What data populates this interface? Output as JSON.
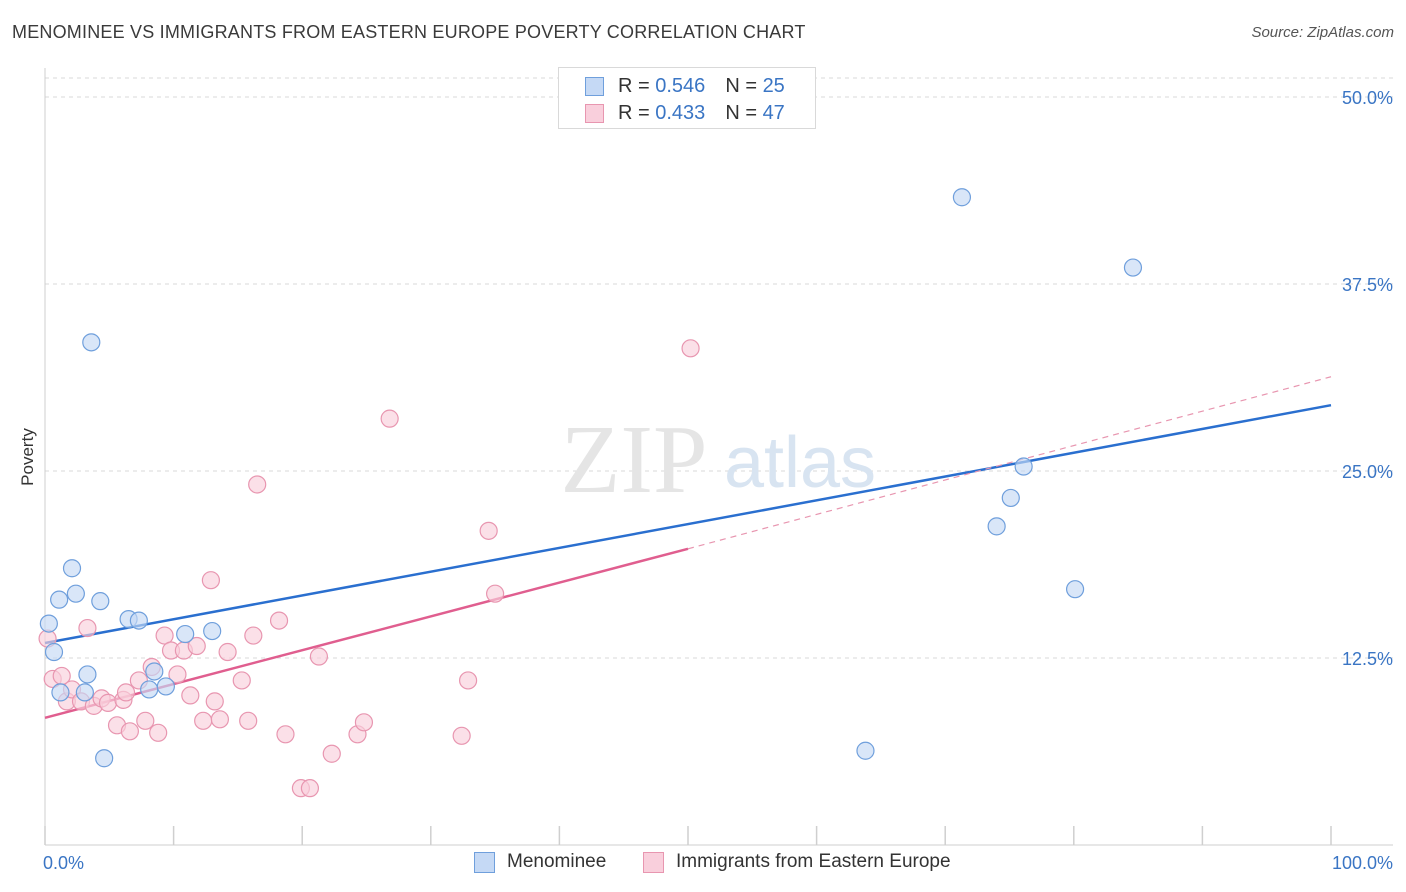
{
  "title": "MENOMINEE VS IMMIGRANTS FROM EASTERN EUROPE POVERTY CORRELATION CHART",
  "source": "Source: ZipAtlas.com",
  "watermark": {
    "zip": "ZIP",
    "atlas": "atlas"
  },
  "legend_top": [
    {
      "r_label": "R =",
      "r_value": "0.546",
      "n_label": "N =",
      "n_value": "25"
    },
    {
      "r_label": "R =",
      "r_value": "0.433",
      "n_label": "N =",
      "n_value": "47"
    }
  ],
  "colors": {
    "menominee_fill": "#c5d9f5",
    "menominee_stroke": "#6f9fdc",
    "menominee_line": "#2a6fcf",
    "immigrants_fill": "#f9cfdc",
    "immigrants_stroke": "#e896b0",
    "immigrants_line": "#e05e8f",
    "tick_label": "#3a75c4",
    "grid": "#d8d8d8"
  },
  "chart_data": {
    "type": "scatter",
    "title": "MENOMINEE VS IMMIGRANTS FROM EASTERN EUROPE POVERTY CORRELATION CHART",
    "xlabel": "",
    "ylabel": "Poverty",
    "xlim": [
      0,
      100
    ],
    "ylim": [
      0,
      50.0
    ],
    "x_tick_labels": [
      "0.0%",
      "100.0%"
    ],
    "y_ticks": [
      12.5,
      25.0,
      37.5,
      50.0
    ],
    "y_tick_labels": [
      "12.5%",
      "25.0%",
      "37.5%",
      "50.0%"
    ],
    "grid": true,
    "legend_position": "bottom",
    "series": [
      {
        "name": "Menominee",
        "R": 0.546,
        "N": 25,
        "points": [
          [
            0.3,
            14.8
          ],
          [
            0.7,
            12.9
          ],
          [
            1.1,
            16.4
          ],
          [
            1.2,
            10.2
          ],
          [
            2.1,
            18.5
          ],
          [
            2.4,
            16.8
          ],
          [
            3.1,
            10.2
          ],
          [
            3.3,
            11.4
          ],
          [
            3.6,
            33.6
          ],
          [
            4.3,
            16.3
          ],
          [
            4.6,
            5.8
          ],
          [
            6.5,
            15.1
          ],
          [
            7.3,
            15.0
          ],
          [
            8.1,
            10.4
          ],
          [
            8.5,
            11.6
          ],
          [
            9.4,
            10.6
          ],
          [
            10.9,
            14.1
          ],
          [
            13.0,
            14.3
          ],
          [
            63.8,
            6.3
          ],
          [
            71.3,
            43.3
          ],
          [
            74.0,
            21.3
          ],
          [
            75.1,
            23.2
          ],
          [
            76.1,
            25.3
          ],
          [
            80.1,
            17.1
          ],
          [
            84.6,
            38.6
          ]
        ],
        "trendline": {
          "x": [
            0,
            100
          ],
          "y": [
            13.5,
            29.4
          ]
        }
      },
      {
        "name": "Immigrants from Eastern Europe",
        "R": 0.433,
        "N": 47,
        "points": [
          [
            0.2,
            13.8
          ],
          [
            0.6,
            11.1
          ],
          [
            1.3,
            11.3
          ],
          [
            1.7,
            9.6
          ],
          [
            2.1,
            10.4
          ],
          [
            2.8,
            9.6
          ],
          [
            3.3,
            14.5
          ],
          [
            3.8,
            9.3
          ],
          [
            4.4,
            9.8
          ],
          [
            4.9,
            9.5
          ],
          [
            5.6,
            8.0
          ],
          [
            6.1,
            9.7
          ],
          [
            6.3,
            10.2
          ],
          [
            6.6,
            7.6
          ],
          [
            7.3,
            11.0
          ],
          [
            7.8,
            8.3
          ],
          [
            8.3,
            11.9
          ],
          [
            8.8,
            7.5
          ],
          [
            9.3,
            14.0
          ],
          [
            9.8,
            13.0
          ],
          [
            10.3,
            11.4
          ],
          [
            10.8,
            13.0
          ],
          [
            11.3,
            10.0
          ],
          [
            11.8,
            13.3
          ],
          [
            12.3,
            8.3
          ],
          [
            12.9,
            17.7
          ],
          [
            13.2,
            9.6
          ],
          [
            13.6,
            8.4
          ],
          [
            14.2,
            12.9
          ],
          [
            15.3,
            11.0
          ],
          [
            15.8,
            8.3
          ],
          [
            16.2,
            14.0
          ],
          [
            16.5,
            24.1
          ],
          [
            18.2,
            15.0
          ],
          [
            18.7,
            7.4
          ],
          [
            19.9,
            3.8
          ],
          [
            20.6,
            3.8
          ],
          [
            21.3,
            12.6
          ],
          [
            22.3,
            6.1
          ],
          [
            24.3,
            7.4
          ],
          [
            24.8,
            8.2
          ],
          [
            26.8,
            28.5
          ],
          [
            32.4,
            7.3
          ],
          [
            32.9,
            11.0
          ],
          [
            34.5,
            21.0
          ],
          [
            35.0,
            16.8
          ],
          [
            50.2,
            33.2
          ]
        ],
        "trendline": {
          "x": [
            0,
            50
          ],
          "y": [
            8.5,
            19.8
          ]
        },
        "trendline_extension": {
          "x": [
            50,
            100
          ],
          "y": [
            19.8,
            31.3
          ]
        }
      }
    ]
  },
  "legend_bottom": [
    {
      "label": "Menominee"
    },
    {
      "label": "Immigrants from Eastern Europe"
    }
  ]
}
